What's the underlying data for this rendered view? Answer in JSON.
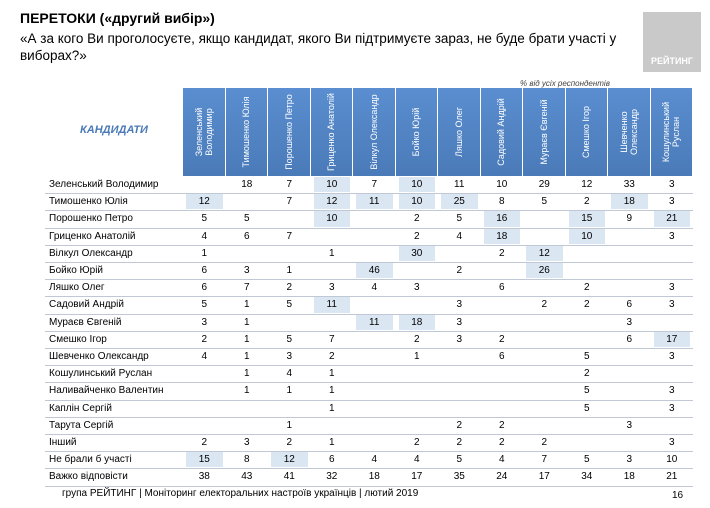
{
  "header": {
    "title": "ПЕРЕТОКИ («другий вибір»)",
    "question": "«А за кого Ви проголосуєте, якщо кандидат, якого Ви підтримуєте зараз, не буде брати участі у виборах?»"
  },
  "logo": "РЕЙТИНГ",
  "note": "% від усіх респондентів",
  "table": {
    "corner_label": "КАНДИДАТИ",
    "columns": [
      "Зеленський Володимир",
      "Тимошенко Юлія",
      "Порошенко Петро",
      "Гриценко Анатолій",
      "Вілкул Олександр",
      "Бойко Юрій",
      "Ляшко Олег",
      "Садовий Андрій",
      "Мураєв Євгеній",
      "Смешко Ігор",
      "Шевченко Олександр",
      "Кошулинський Руслан"
    ],
    "rows": [
      {
        "label": "Зеленський Володимир",
        "cells": [
          null,
          18,
          7,
          10,
          7,
          10,
          11,
          10,
          29,
          12,
          33,
          3
        ],
        "highlight": [
          3,
          5
        ]
      },
      {
        "label": "Тимошенко Юлія",
        "cells": [
          12,
          null,
          7,
          12,
          11,
          10,
          25,
          8,
          5,
          2,
          18,
          3
        ],
        "highlight": [
          0,
          3,
          4,
          5,
          6,
          10
        ]
      },
      {
        "label": "Порошенко Петро",
        "cells": [
          5,
          5,
          null,
          10,
          null,
          2,
          5,
          16,
          null,
          15,
          9,
          21
        ],
        "highlight": [
          3,
          7,
          9,
          11
        ]
      },
      {
        "label": "Гриценко Анатолій",
        "cells": [
          4,
          6,
          7,
          null,
          null,
          2,
          4,
          18,
          null,
          10,
          null,
          3
        ],
        "highlight": [
          7,
          9
        ]
      },
      {
        "label": "Вілкул Олександр",
        "cells": [
          1,
          null,
          null,
          1,
          null,
          30,
          null,
          2,
          12,
          null,
          null,
          null
        ],
        "highlight": [
          5,
          8
        ]
      },
      {
        "label": "Бойко Юрій",
        "cells": [
          6,
          3,
          1,
          null,
          46,
          null,
          2,
          null,
          26,
          null,
          null,
          null
        ],
        "highlight": [
          4,
          8
        ]
      },
      {
        "label": "Ляшко Олег",
        "cells": [
          6,
          7,
          2,
          3,
          4,
          3,
          null,
          6,
          null,
          2,
          null,
          3
        ],
        "highlight": []
      },
      {
        "label": "Садовий Андрій",
        "cells": [
          5,
          1,
          5,
          11,
          null,
          null,
          3,
          null,
          2,
          2,
          6,
          3
        ],
        "highlight": [
          3
        ]
      },
      {
        "label": "Мураєв Євгеній",
        "cells": [
          3,
          1,
          null,
          null,
          11,
          18,
          3,
          null,
          null,
          null,
          3,
          null
        ],
        "highlight": [
          4,
          5
        ]
      },
      {
        "label": "Смешко Ігор",
        "cells": [
          2,
          1,
          5,
          7,
          null,
          2,
          3,
          2,
          null,
          null,
          6,
          17
        ],
        "highlight": [
          11
        ]
      },
      {
        "label": "Шевченко Олександр",
        "cells": [
          4,
          1,
          3,
          2,
          null,
          1,
          null,
          6,
          null,
          5,
          null,
          3
        ],
        "highlight": []
      },
      {
        "label": "Кошулинський Руслан",
        "cells": [
          null,
          1,
          4,
          1,
          null,
          null,
          null,
          null,
          null,
          2,
          null,
          null
        ],
        "highlight": []
      },
      {
        "label": "Наливайченко Валентин",
        "cells": [
          null,
          1,
          1,
          1,
          null,
          null,
          null,
          null,
          null,
          5,
          null,
          3
        ],
        "highlight": []
      },
      {
        "label": "Каплін Сергій",
        "cells": [
          null,
          null,
          null,
          1,
          null,
          null,
          null,
          null,
          null,
          5,
          null,
          3
        ],
        "highlight": []
      },
      {
        "label": "Тарута Сергій",
        "cells": [
          null,
          null,
          1,
          null,
          null,
          null,
          2,
          2,
          null,
          null,
          3,
          null
        ],
        "highlight": []
      },
      {
        "label": "Інший",
        "cells": [
          2,
          3,
          2,
          1,
          null,
          2,
          2,
          2,
          2,
          null,
          null,
          3
        ],
        "highlight": []
      },
      {
        "label": "Не брали б участі",
        "cells": [
          15,
          8,
          12,
          6,
          4,
          4,
          5,
          4,
          7,
          5,
          3,
          10
        ],
        "highlight": [
          0,
          2
        ]
      },
      {
        "label": "Важко відповісти",
        "cells": [
          38,
          43,
          41,
          32,
          18,
          17,
          35,
          24,
          17,
          34,
          18,
          21
        ],
        "highlight": []
      }
    ]
  },
  "footer": {
    "text": "група РЕЙТИНГ |  Моніторинг електоральних настроїв українців | лютий  2019",
    "page": "16"
  }
}
